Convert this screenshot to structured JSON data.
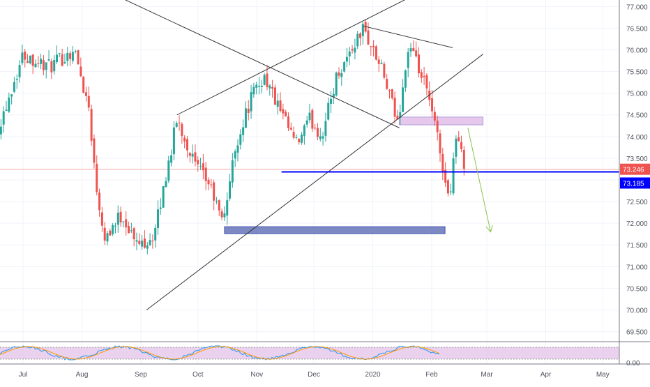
{
  "chart_data": {
    "type": "candlestick",
    "title": "",
    "xlabel": "",
    "ylabel": "",
    "ylim": [
      69.3,
      77.15
    ],
    "grid": true,
    "price_ticks": [
      "77.000",
      "76.500",
      "76.000",
      "75.500",
      "75.000",
      "74.500",
      "74.000",
      "73.500",
      "73.000",
      "72.500",
      "72.000",
      "71.500",
      "71.000",
      "70.500",
      "70.000",
      "69.500"
    ],
    "time_labels": [
      "Jul",
      "Aug",
      "Sep",
      "Oct",
      "Nov",
      "Dec",
      "2020",
      "Feb",
      "Mar",
      "Apr",
      "May"
    ],
    "last_price": "73.246",
    "level_price": "73.185",
    "indicator_tick": "0.00",
    "colors": {
      "up": "#26a69a",
      "down": "#ef5350",
      "level": "#0000ff",
      "zone_support": "#6674b8",
      "zone_resistance": "#e1bee7",
      "projection": "#8bc34a",
      "trendline": "#333333",
      "last_price_badge": "#ef5350",
      "level_badge": "#0000ff",
      "stoch_k": "#2196f3",
      "stoch_d": "#ff9800",
      "stoch_band": "#e1bee7"
    },
    "swing_path": [
      {
        "date": "2019-06-18",
        "value": 74.2
      },
      {
        "date": "2019-07-01",
        "value": 75.9
      },
      {
        "date": "2019-07-15",
        "value": 75.6
      },
      {
        "date": "2019-07-28",
        "value": 76.0
      },
      {
        "date": "2019-08-05",
        "value": 74.6
      },
      {
        "date": "2019-08-08",
        "value": 73.0
      },
      {
        "date": "2019-08-13",
        "value": 71.7
      },
      {
        "date": "2019-08-22",
        "value": 72.2
      },
      {
        "date": "2019-08-30",
        "value": 71.5
      },
      {
        "date": "2019-09-08",
        "value": 71.7
      },
      {
        "date": "2019-09-20",
        "value": 74.4
      },
      {
        "date": "2019-09-30",
        "value": 73.3
      },
      {
        "date": "2019-10-07",
        "value": 72.9
      },
      {
        "date": "2019-10-14",
        "value": 72.0
      },
      {
        "date": "2019-10-21",
        "value": 73.8
      },
      {
        "date": "2019-10-29",
        "value": 74.9
      },
      {
        "date": "2019-11-05",
        "value": 75.4
      },
      {
        "date": "2019-11-15",
        "value": 74.4
      },
      {
        "date": "2019-11-22",
        "value": 73.8
      },
      {
        "date": "2019-11-29",
        "value": 74.4
      },
      {
        "date": "2019-12-05",
        "value": 74.0
      },
      {
        "date": "2019-12-13",
        "value": 75.4
      },
      {
        "date": "2019-12-27",
        "value": 76.5
      },
      {
        "date": "2020-01-06",
        "value": 75.5
      },
      {
        "date": "2020-01-14",
        "value": 74.3
      },
      {
        "date": "2020-01-20",
        "value": 76.1
      },
      {
        "date": "2020-01-29",
        "value": 75.1
      },
      {
        "date": "2020-02-04",
        "value": 74.0
      },
      {
        "date": "2020-02-10",
        "value": 72.5
      },
      {
        "date": "2020-02-14",
        "value": 74.1
      },
      {
        "date": "2020-02-18",
        "value": 73.3
      }
    ],
    "annotations": {
      "rising_wedge_upper": [
        {
          "date": "2019-09-20",
          "value": 74.5
        },
        {
          "date": "2020-02-07",
          "value": 77.6
        }
      ],
      "rising_wedge_lower": [
        {
          "date": "2019-09-04",
          "value": 70.0
        },
        {
          "date": "2020-02-28",
          "value": 75.9
        }
      ],
      "falling_line": [
        {
          "date": "2019-08-02",
          "value": 77.6
        },
        {
          "date": "2020-01-15",
          "value": 74.2
        }
      ],
      "top_resistance_line": [
        {
          "date": "2019-12-27",
          "value": 76.55
        },
        {
          "date": "2020-02-12",
          "value": 76.05
        }
      ],
      "horizontal_level": [
        {
          "date": "2019-11-14",
          "value": 73.185
        },
        {
          "date": "2020-05-31",
          "value": 73.185
        }
      ],
      "support_zone": {
        "from": "2019-10-15",
        "to": "2020-02-08",
        "top": 71.92,
        "bottom": 71.76
      },
      "resistance_zone": {
        "from": "2020-01-15",
        "to": "2020-02-28",
        "top": 74.45,
        "bottom": 74.27
      },
      "projection_arrow": [
        {
          "date": "2020-02-20",
          "value": 74.2
        },
        {
          "date": "2020-03-03",
          "value": 71.8
        }
      ]
    }
  }
}
